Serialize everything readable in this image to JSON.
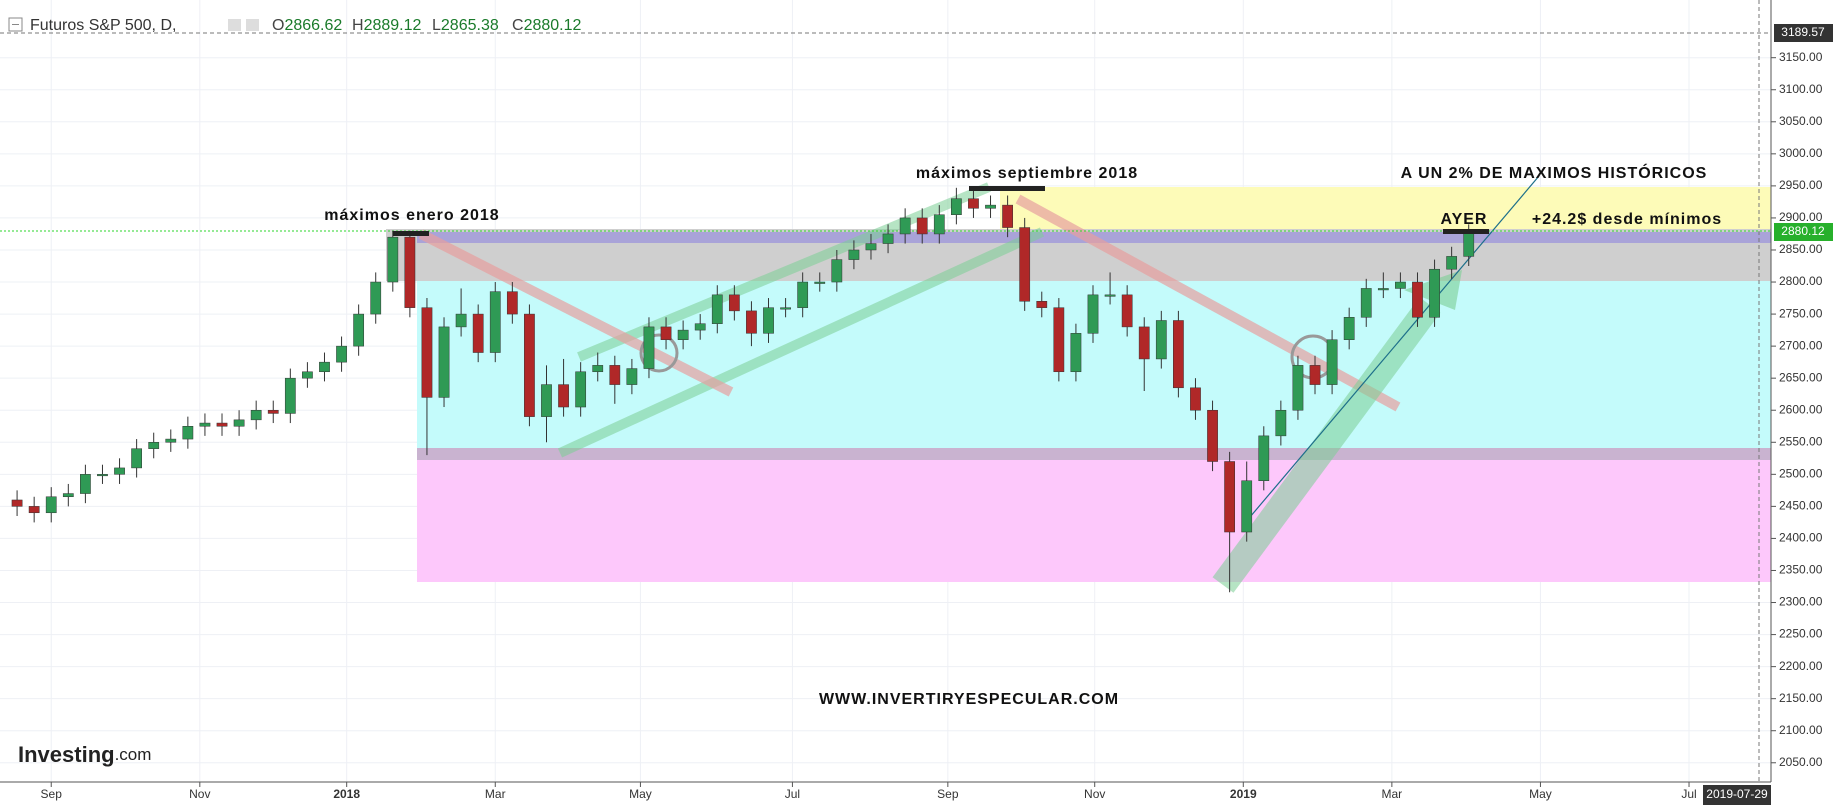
{
  "header": {
    "symbol": "Futuros S&P 500, D,",
    "ohlc": [
      {
        "label": "O",
        "value": "2866.62"
      },
      {
        "label": "H",
        "value": "2889.12"
      },
      {
        "label": "L",
        "value": "2865.38"
      },
      {
        "label": "C",
        "value": "2880.12"
      }
    ]
  },
  "annotations": [
    "máximos enero 2018",
    "máximos septiembre 2018",
    "A UN 2% DE MAXIMOS HISTÓRICOS",
    "AYER",
    "+24.2$ desde mínimos",
    "WWW.INVERTIRYESPECULAR.COM"
  ],
  "logo": {
    "brand": "Investing",
    "suffix": ".com"
  },
  "price_labels": {
    "top": "3189.57",
    "last": "2880.12",
    "date": "2019-07-29"
  },
  "chart_data": {
    "type": "candlestick",
    "up_color": "#2f9a55",
    "down_color": "#b02828",
    "grid": true,
    "x": [
      -2,
      -1,
      0,
      1,
      2,
      3,
      4,
      5,
      6,
      7,
      8,
      9,
      10,
      11,
      12,
      13,
      14,
      15,
      16,
      17,
      18,
      19,
      20,
      21,
      22,
      23,
      24,
      25,
      26,
      27,
      28,
      29,
      30,
      31,
      32,
      33,
      34,
      35,
      36,
      37,
      38,
      39,
      40,
      41,
      42,
      43,
      44,
      45,
      46,
      47,
      48,
      49,
      50,
      51,
      52,
      53,
      54,
      55,
      56,
      57,
      58,
      59,
      60,
      61,
      62,
      63,
      64,
      65,
      66,
      67,
      68,
      69,
      70,
      71,
      72,
      73,
      74,
      75,
      76,
      77,
      78,
      79,
      80,
      81,
      82,
      83
    ],
    "open": [
      2460,
      2450,
      2440,
      2465,
      2470,
      2500,
      2500,
      2510,
      2540,
      2550,
      2555,
      2575,
      2580,
      2575,
      2585,
      2600,
      2595,
      2650,
      2660,
      2675,
      2700,
      2750,
      2800,
      2870,
      2760,
      2620,
      2730,
      2750,
      2690,
      2785,
      2750,
      2590,
      2640,
      2605,
      2660,
      2670,
      2640,
      2665,
      2730,
      2710,
      2725,
      2735,
      2780,
      2755,
      2720,
      2760,
      2760,
      2800,
      2800,
      2835,
      2850,
      2860,
      2875,
      2900,
      2875,
      2905,
      2930,
      2915,
      2920,
      2885,
      2770,
      2760,
      2660,
      2720,
      2780,
      2780,
      2730,
      2680,
      2740,
      2635,
      2600,
      2520,
      2410,
      2490,
      2560,
      2600,
      2670,
      2640,
      2710,
      2745,
      2790,
      2790,
      2800,
      2745,
      2820,
      2840
    ],
    "high": [
      2475,
      2465,
      2480,
      2485,
      2515,
      2515,
      2525,
      2555,
      2565,
      2570,
      2590,
      2595,
      2595,
      2600,
      2615,
      2615,
      2665,
      2675,
      2690,
      2715,
      2765,
      2815,
      2880,
      2880,
      2775,
      2745,
      2790,
      2765,
      2800,
      2800,
      2765,
      2670,
      2680,
      2675,
      2690,
      2685,
      2680,
      2745,
      2745,
      2740,
      2750,
      2795,
      2795,
      2770,
      2775,
      2775,
      2815,
      2815,
      2850,
      2865,
      2875,
      2890,
      2915,
      2915,
      2920,
      2947,
      2945,
      2935,
      2935,
      2900,
      2785,
      2775,
      2735,
      2795,
      2815,
      2795,
      2745,
      2755,
      2755,
      2650,
      2615,
      2535,
      2520,
      2575,
      2615,
      2685,
      2685,
      2725,
      2760,
      2805,
      2815,
      2815,
      2815,
      2835,
      2855,
      2890
    ],
    "low": [
      2435,
      2425,
      2425,
      2450,
      2455,
      2485,
      2485,
      2495,
      2525,
      2535,
      2540,
      2560,
      2560,
      2560,
      2570,
      2580,
      2580,
      2635,
      2645,
      2660,
      2685,
      2735,
      2785,
      2745,
      2530,
      2605,
      2715,
      2675,
      2675,
      2735,
      2575,
      2550,
      2590,
      2590,
      2645,
      2610,
      2625,
      2650,
      2695,
      2695,
      2710,
      2720,
      2740,
      2700,
      2705,
      2745,
      2745,
      2785,
      2785,
      2820,
      2835,
      2845,
      2860,
      2860,
      2860,
      2890,
      2900,
      2900,
      2870,
      2755,
      2745,
      2645,
      2645,
      2705,
      2765,
      2715,
      2630,
      2665,
      2620,
      2585,
      2505,
      2316,
      2395,
      2475,
      2545,
      2585,
      2625,
      2625,
      2695,
      2730,
      2775,
      2775,
      2730,
      2730,
      2805,
      2825
    ],
    "close": [
      2450,
      2440,
      2465,
      2470,
      2500,
      2500,
      2510,
      2540,
      2550,
      2555,
      2575,
      2580,
      2575,
      2585,
      2600,
      2595,
      2650,
      2660,
      2675,
      2700,
      2750,
      2800,
      2870,
      2760,
      2620,
      2730,
      2750,
      2690,
      2785,
      2750,
      2590,
      2640,
      2605,
      2660,
      2670,
      2640,
      2665,
      2730,
      2710,
      2725,
      2735,
      2780,
      2755,
      2720,
      2760,
      2760,
      2800,
      2800,
      2835,
      2850,
      2860,
      2875,
      2900,
      2875,
      2905,
      2930,
      2915,
      2920,
      2885,
      2770,
      2760,
      2660,
      2720,
      2780,
      2780,
      2730,
      2680,
      2740,
      2635,
      2600,
      2520,
      2410,
      2490,
      2560,
      2600,
      2670,
      2640,
      2710,
      2745,
      2790,
      2790,
      2800,
      2745,
      2820,
      2840,
      2880
    ],
    "xlim": [
      -3,
      100.7
    ],
    "xticks": [
      {
        "value": 0,
        "label": "Sep"
      },
      {
        "value": 8.7,
        "label": "Nov"
      },
      {
        "value": 17.3,
        "label": "2018"
      },
      {
        "value": 26,
        "label": "Mar"
      },
      {
        "value": 34.5,
        "label": "May"
      },
      {
        "value": 43.4,
        "label": "Jul"
      },
      {
        "value": 52.5,
        "label": "Sep"
      },
      {
        "value": 61.1,
        "label": "Nov"
      },
      {
        "value": 69.8,
        "label": "2019"
      },
      {
        "value": 78.5,
        "label": "Mar"
      },
      {
        "value": 87.2,
        "label": "May"
      },
      {
        "value": 95.9,
        "label": "Jul"
      }
    ],
    "ylim": [
      2020,
      3240
    ],
    "yticks": [
      {
        "value": 2050,
        "label": "2050.00"
      },
      {
        "value": 2100,
        "label": "2100.00"
      },
      {
        "value": 2150,
        "label": "2150.00"
      },
      {
        "value": 2200,
        "label": "2200.00"
      },
      {
        "value": 2250,
        "label": "2250.00"
      },
      {
        "value": 2300,
        "label": "2300.00"
      },
      {
        "value": 2350,
        "label": "2350.00"
      },
      {
        "value": 2400,
        "label": "2400.00"
      },
      {
        "value": 2450,
        "label": "2450.00"
      },
      {
        "value": 2500,
        "label": "2500.00"
      },
      {
        "value": 2550,
        "label": "2550.00"
      },
      {
        "value": 2600,
        "label": "2600.00"
      },
      {
        "value": 2650,
        "label": "2650.00"
      },
      {
        "value": 2700,
        "label": "2700.00"
      },
      {
        "value": 2750,
        "label": "2750.00"
      },
      {
        "value": 2800,
        "label": "2800.00"
      },
      {
        "value": 2850,
        "label": "2850.00"
      },
      {
        "value": 2900,
        "label": "2900.00"
      },
      {
        "value": 2950,
        "label": "2950.00"
      },
      {
        "value": 3000,
        "label": "3000.00"
      },
      {
        "value": 3050,
        "label": "3050.00"
      },
      {
        "value": 3100,
        "label": "3100.00"
      },
      {
        "value": 3150,
        "label": "3150.00"
      }
    ]
  }
}
